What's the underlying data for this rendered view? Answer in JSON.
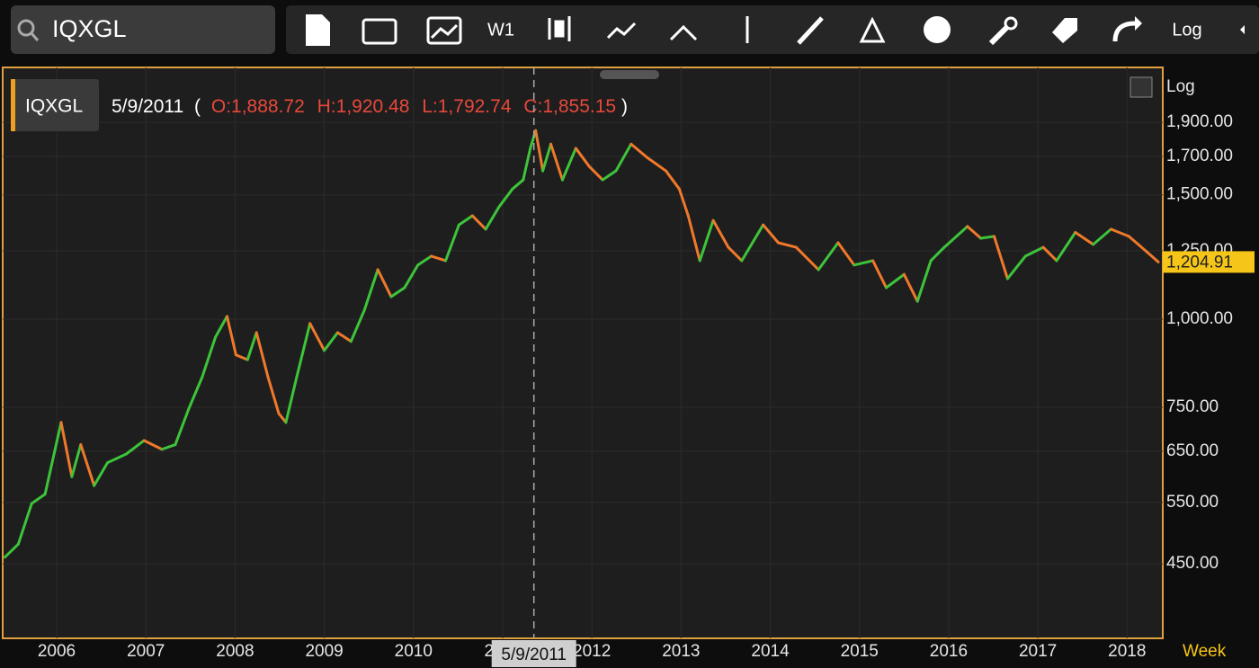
{
  "toolbar": {
    "search": "IQXGL",
    "interval": "W1",
    "scale": "Log"
  },
  "header": {
    "symbol": "IQXGL",
    "date": "5/9/2011",
    "open_paren": "(",
    "ohlc": [
      "O:1,888.72",
      "H:1,920.48",
      "L:1,792.74",
      "C:1,855.15"
    ],
    "close_paren": ")"
  },
  "chart_data": {
    "type": "line",
    "log_scale": true,
    "grid": true,
    "scale_label": "Log",
    "period_label": "Week",
    "up_color": "#3dc43a",
    "down_color": "#f0782a",
    "x": [
      2005.42,
      2005.57,
      2005.72,
      2005.87,
      2006.05,
      2006.17,
      2006.27,
      2006.42,
      2006.57,
      2006.78,
      2006.98,
      2007.18,
      2007.33,
      2007.48,
      2007.63,
      2007.78,
      2007.91,
      2008.01,
      2008.14,
      2008.24,
      2008.37,
      2008.49,
      2008.57,
      2008.69,
      2008.84,
      2009.0,
      2009.15,
      2009.3,
      2009.45,
      2009.6,
      2009.75,
      2009.9,
      2010.05,
      2010.2,
      2010.36,
      2010.51,
      2010.66,
      2010.81,
      2010.96,
      2011.11,
      2011.23,
      2011.31,
      2011.37,
      2011.45,
      2011.54,
      2011.67,
      2011.82,
      2011.97,
      2012.12,
      2012.27,
      2012.44,
      2012.62,
      2012.83,
      2012.98,
      2013.08,
      2013.21,
      2013.36,
      2013.53,
      2013.68,
      2013.92,
      2014.09,
      2014.29,
      2014.54,
      2014.76,
      2014.94,
      2015.15,
      2015.3,
      2015.5,
      2015.65,
      2015.8,
      2015.95,
      2016.21,
      2016.36,
      2016.51,
      2016.66,
      2016.86,
      2017.06,
      2017.21,
      2017.42,
      2017.62,
      2017.82,
      2018.02,
      2018.22,
      2018.35
    ],
    "series": [
      {
        "name": "IQXGL",
        "values": [
          460,
          480,
          548,
          565,
          714,
          598,
          664,
          581,
          626,
          644,
          673,
          654,
          664,
          746,
          827,
          943,
          1009,
          890,
          876,
          957,
          827,
          735,
          714,
          827,
          986,
          903,
          957,
          930,
          1030,
          1175,
          1076,
          1108,
          1193,
          1228,
          1210,
          1360,
          1401,
          1341,
          1443,
          1529,
          1575,
          1746,
          1850,
          1622,
          1770,
          1575,
          1746,
          1646,
          1575,
          1622,
          1770,
          1694,
          1622,
          1529,
          1401,
          1210,
          1380,
          1264,
          1210,
          1360,
          1283,
          1264,
          1175,
          1283,
          1193,
          1210,
          1108,
          1157,
          1060,
          1210,
          1264,
          1353,
          1302,
          1310,
          1141,
          1228,
          1264,
          1210,
          1327,
          1276,
          1341,
          1310,
          1246,
          1204.91
        ]
      }
    ],
    "last_price": {
      "value": 1204.91,
      "label": "1,204.91"
    },
    "crosshair": {
      "value": 2011.35,
      "label": "5/9/2011"
    },
    "xlim": [
      2005.395,
      2018.4
    ],
    "ylim": [
      353,
      2273
    ],
    "xticks": [
      2006,
      2007,
      2008,
      2009,
      2010,
      2011,
      2012,
      2013,
      2014,
      2015,
      2016,
      2017,
      2018
    ],
    "yticks": [
      {
        "value": 450,
        "label": "450.00"
      },
      {
        "value": 550,
        "label": "550.00"
      },
      {
        "value": 650,
        "label": "650.00"
      },
      {
        "value": 750,
        "label": "750.00"
      },
      {
        "value": 1000,
        "label": "1,000.00"
      },
      {
        "value": 1250,
        "label": "1,250.00"
      },
      {
        "value": 1500,
        "label": "1,500.00"
      },
      {
        "value": 1700,
        "label": "1,700.00"
      },
      {
        "value": 1900,
        "label": "1,900.00"
      }
    ]
  }
}
